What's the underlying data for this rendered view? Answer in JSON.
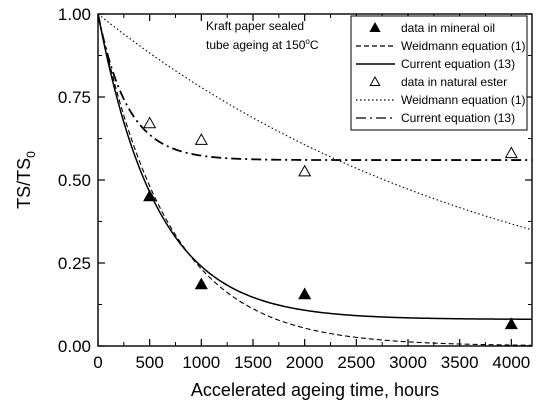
{
  "chart_data": {
    "type": "scatter",
    "xlabel": "Accelerated ageing time, hours",
    "ylabel": "TS/TS",
    "ylabel_subscript": "0",
    "xlim": [
      0,
      4200
    ],
    "ylim": [
      0,
      1.0
    ],
    "xticks": [
      0,
      500,
      1000,
      1500,
      2000,
      2500,
      3000,
      3500,
      4000
    ],
    "yticks": [
      "0.00",
      "0.25",
      "0.50",
      "0.75",
      "1.00"
    ],
    "annotation_line1": "Kraft paper sealed",
    "annotation_line2_pre": "tube ageing at 150",
    "annotation_degree": "o",
    "annotation_line2_post": "C",
    "legend_position": "top-right",
    "series": [
      {
        "name": "data in mineral oil",
        "kind": "points",
        "marker": "filled-triangle",
        "x": [
          500,
          1000,
          2000,
          4000
        ],
        "y": [
          0.45,
          0.185,
          0.155,
          0.065
        ]
      },
      {
        "name": "Weidmann equation (1)",
        "kind": "line",
        "dash": "dashed",
        "params": {
          "type": "exp",
          "a": 1.0,
          "c": 0.0,
          "k": 0.00146
        }
      },
      {
        "name": "Current equation (13)",
        "kind": "line",
        "dash": "solid",
        "params": {
          "type": "exp",
          "a": 0.92,
          "c": 0.08,
          "k": 0.00175
        }
      },
      {
        "name": "data in natural ester",
        "kind": "points",
        "marker": "open-triangle",
        "x": [
          500,
          1000,
          2000,
          4000
        ],
        "y": [
          0.67,
          0.62,
          0.525,
          0.58
        ]
      },
      {
        "name": "Weidmann equation (1)",
        "kind": "line",
        "dash": "dotted",
        "params": {
          "type": "exp",
          "a": 1.0,
          "c": 0.0,
          "k": 0.00025
        }
      },
      {
        "name": "Current equation (13)",
        "kind": "line",
        "dash": "dashdot",
        "params": {
          "type": "exp",
          "a": 0.44,
          "c": 0.56,
          "k": 0.0035
        }
      }
    ]
  }
}
